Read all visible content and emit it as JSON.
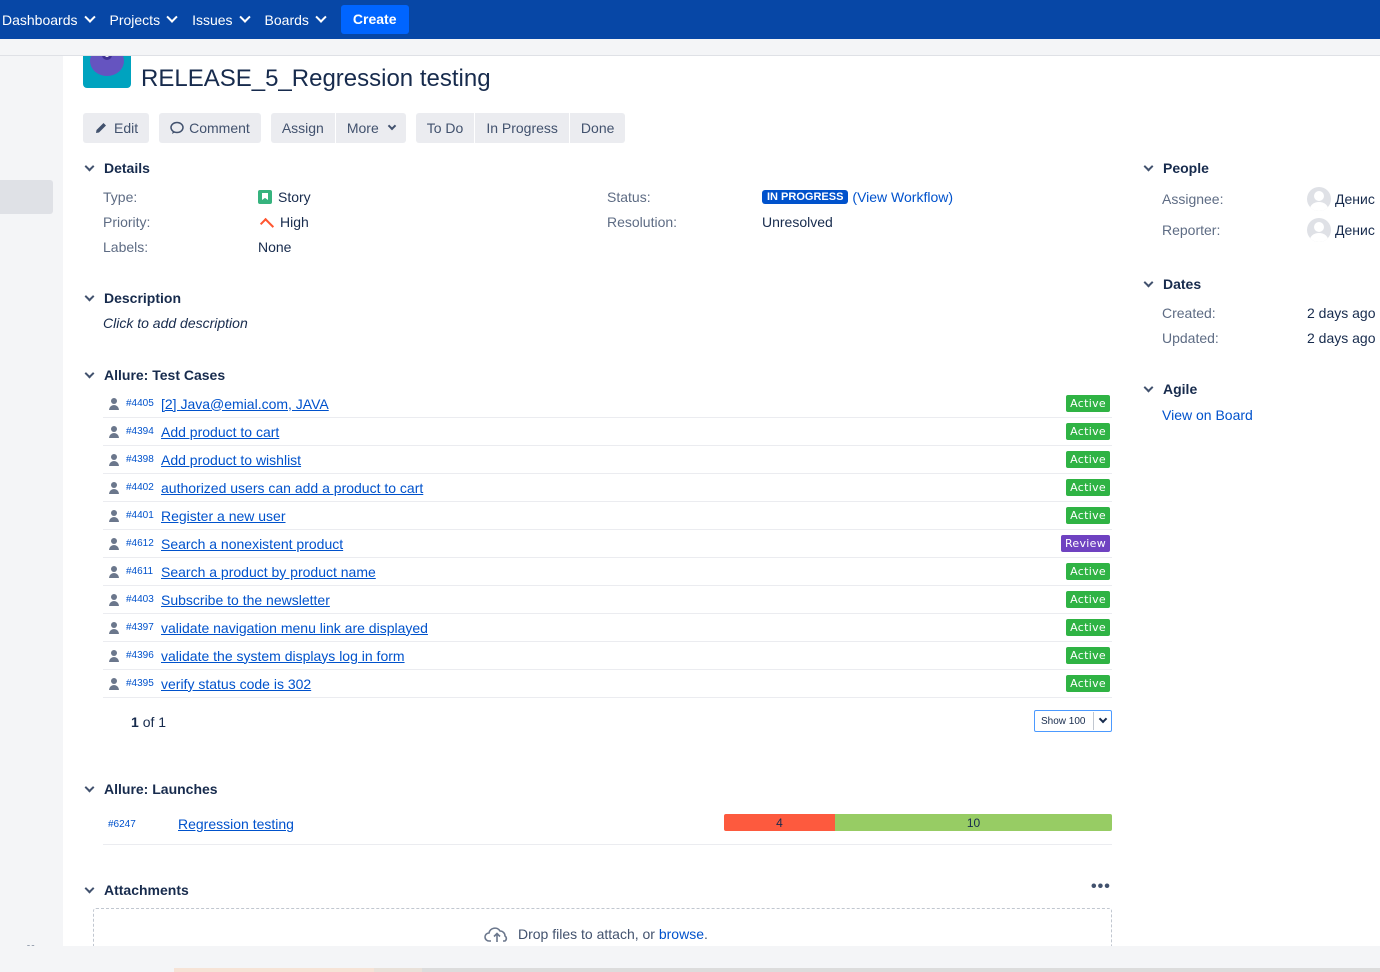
{
  "nav": {
    "items": [
      {
        "label": "Dashboards"
      },
      {
        "label": "Projects"
      },
      {
        "label": "Issues"
      },
      {
        "label": "Boards"
      }
    ],
    "create_label": "Create"
  },
  "issue": {
    "title": "RELEASE_5_Regression testing"
  },
  "toolbar": {
    "edit": "Edit",
    "comment": "Comment",
    "assign": "Assign",
    "more": "More",
    "todo": "To Do",
    "in_progress": "In Progress",
    "done": "Done"
  },
  "details": {
    "heading": "Details",
    "type_label": "Type:",
    "type_value": "Story",
    "priority_label": "Priority:",
    "priority_value": "High",
    "labels_label": "Labels:",
    "labels_value": "None",
    "status_label": "Status:",
    "status_value": "IN PROGRESS",
    "view_workflow": "View Workflow",
    "resolution_label": "Resolution:",
    "resolution_value": "Unresolved"
  },
  "description": {
    "heading": "Description",
    "placeholder": "Click to add description"
  },
  "test_cases": {
    "heading": "Allure: Test Cases",
    "rows": [
      {
        "id": "#4405",
        "name": "[2] Java@emial.com, JAVA",
        "status": "Active"
      },
      {
        "id": "#4394",
        "name": "Add product to cart",
        "status": "Active"
      },
      {
        "id": "#4398",
        "name": "Add product to wishlist",
        "status": "Active"
      },
      {
        "id": "#4402",
        "name": "authorized users can add a product to cart",
        "status": "Active"
      },
      {
        "id": "#4401",
        "name": "Register a new user",
        "status": "Active"
      },
      {
        "id": "#4612",
        "name": "Search a nonexistent product",
        "status": "Review"
      },
      {
        "id": "#4611",
        "name": "Search a product by product name",
        "status": "Active"
      },
      {
        "id": "#4403",
        "name": "Subscribe to the newsletter",
        "status": "Active"
      },
      {
        "id": "#4397",
        "name": "validate navigation menu link are displayed",
        "status": "Active"
      },
      {
        "id": "#4396",
        "name": "validate the system displays log in form",
        "status": "Active"
      },
      {
        "id": "#4395",
        "name": "verify status code is 302",
        "status": "Active"
      }
    ],
    "pager_current": "1",
    "pager_rest": "of 1",
    "show_select": "Show 100"
  },
  "launches": {
    "heading": "Allure: Launches",
    "rows": [
      {
        "id": "#6247",
        "name": "Regression testing",
        "failed": 4,
        "passed": 10
      }
    ]
  },
  "attachments": {
    "heading": "Attachments",
    "more": "•••",
    "drop_text": "Drop files to attach, or",
    "browse": "browse",
    "period": "."
  },
  "people": {
    "heading": "People",
    "assignee_label": "Assignee:",
    "assignee_value": "Денис",
    "reporter_label": "Reporter:",
    "reporter_value": "Денис"
  },
  "dates": {
    "heading": "Dates",
    "created_label": "Created:",
    "created_value": "2 days ago",
    "updated_label": "Updated:",
    "updated_value": "2 days ago"
  },
  "agile": {
    "heading": "Agile",
    "link": "View on Board"
  },
  "colors": {
    "nav_bg": "#0747a6",
    "create_bg": "#0065ff",
    "active_badge": "#2fb344",
    "review_badge": "#6f42c1",
    "failed": "#fd5a3e",
    "passed": "#97cc64",
    "status_lozenge": "#0052cc"
  },
  "icons": {
    "collapse": "«"
  }
}
